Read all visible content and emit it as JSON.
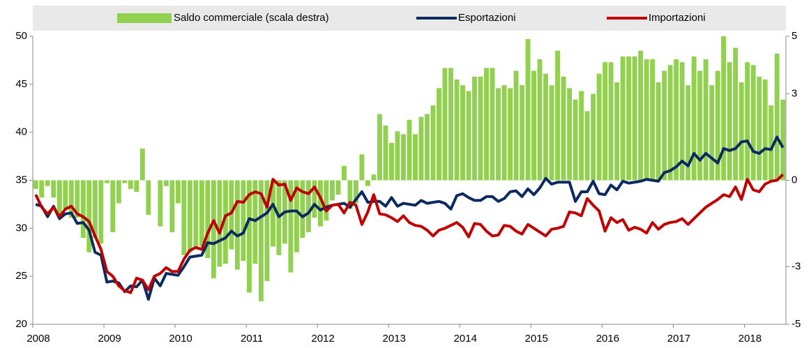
{
  "chart_data": {
    "type": "combo",
    "categories": [
      "2008",
      null,
      null,
      null,
      null,
      null,
      null,
      null,
      null,
      null,
      null,
      null,
      "2009",
      null,
      null,
      null,
      null,
      null,
      null,
      null,
      null,
      null,
      null,
      null,
      "2010",
      null,
      null,
      null,
      null,
      null,
      null,
      null,
      null,
      null,
      null,
      null,
      "2011",
      null,
      null,
      null,
      null,
      null,
      null,
      null,
      null,
      null,
      null,
      null,
      "2012",
      null,
      null,
      null,
      null,
      null,
      null,
      null,
      null,
      null,
      null,
      null,
      "2013",
      null,
      null,
      null,
      null,
      null,
      null,
      null,
      null,
      null,
      null,
      null,
      "2014",
      null,
      null,
      null,
      null,
      null,
      null,
      null,
      null,
      null,
      null,
      null,
      "2015",
      null,
      null,
      null,
      null,
      null,
      null,
      null,
      null,
      null,
      null,
      null,
      "2016",
      null,
      null,
      null,
      null,
      null,
      null,
      null,
      null,
      null,
      null,
      null,
      "2017",
      null,
      null,
      null,
      null,
      null,
      null,
      null,
      null,
      null,
      null,
      null,
      "2018",
      null,
      null,
      null,
      null,
      null,
      null
    ],
    "series": [
      {
        "name": "Saldo commerciale (scala destra)",
        "type": "bar",
        "axis": "y2",
        "color": "#92d050",
        "values": [
          -0.3,
          -0.6,
          -0.2,
          -0.6,
          -1.2,
          -1.0,
          -1.3,
          -1.3,
          -2.0,
          -2.5,
          -2.0,
          -2.2,
          -0.1,
          -1.8,
          -0.8,
          -0.1,
          -0.3,
          -0.4,
          1.1,
          -1.2,
          0.0,
          -1.6,
          -0.2,
          -1.8,
          -0.8,
          -2.6,
          -2.5,
          -2.4,
          -2.3,
          -2.7,
          -3.4,
          -3.0,
          -2.9,
          -2.4,
          -3.1,
          -2.8,
          -3.9,
          -2.9,
          -4.2,
          -3.5,
          -2.3,
          -2.6,
          -2.2,
          -3.2,
          -2.5,
          -2.0,
          -1.8,
          -1.3,
          -1.6,
          -1.4,
          -0.7,
          -0.5,
          0.5,
          -1.0,
          -0.8,
          0.9,
          -0.2,
          0.2,
          2.3,
          1.9,
          1.3,
          1.7,
          1.6,
          2.1,
          1.6,
          2.2,
          2.3,
          2.6,
          3.2,
          3.9,
          3.9,
          3.5,
          3.3,
          3.1,
          3.6,
          3.6,
          3.9,
          3.9,
          3.2,
          3.3,
          3.2,
          3.8,
          3.3,
          4.9,
          3.8,
          4.2,
          3.7,
          3.3,
          4.5,
          3.6,
          3.2,
          2.8,
          3.1,
          2.4,
          3.0,
          3.7,
          4.1,
          4.1,
          3.4,
          4.3,
          4.3,
          4.3,
          4.5,
          4.2,
          4.2,
          3.4,
          3.8,
          4.0,
          4.2,
          4.1,
          3.3,
          4.3,
          3.8,
          4.2,
          3.3,
          3.8,
          5.0,
          4.1,
          4.6,
          3.4,
          4.1,
          4.0,
          3.6,
          3.5,
          2.6,
          4.4,
          2.8
        ]
      },
      {
        "name": "Esportazioni",
        "type": "line",
        "axis": "y",
        "color": "#0b2a60",
        "values": [
          32.5,
          32.3,
          31.2,
          32.3,
          31.0,
          31.5,
          31.6,
          30.5,
          30.6,
          29.8,
          27.5,
          27.2,
          24.4,
          24.5,
          24.3,
          23.4,
          24.0,
          23.9,
          24.6,
          22.6,
          24.8,
          24.0,
          25.3,
          25.2,
          25.1,
          26.0,
          27.0,
          27.1,
          27.2,
          28.5,
          28.4,
          28.7,
          29.0,
          29.7,
          29.2,
          29.5,
          31.0,
          30.8,
          31.2,
          31.6,
          32.5,
          31.2,
          31.7,
          31.8,
          31.8,
          31.2,
          31.6,
          32.5,
          31.9,
          32.2,
          32.4,
          32.5,
          32.6,
          32.2,
          33.0,
          33.8,
          32.7,
          32.8,
          32.8,
          32.3,
          33.2,
          32.3,
          32.6,
          32.5,
          32.4,
          32.9,
          32.6,
          32.7,
          32.8,
          32.6,
          32.0,
          33.4,
          33.6,
          33.2,
          32.9,
          32.9,
          33.3,
          33.3,
          32.8,
          33.1,
          33.8,
          33.9,
          33.3,
          34.1,
          33.5,
          34.2,
          35.2,
          34.6,
          34.8,
          34.8,
          34.8,
          32.8,
          33.8,
          33.8,
          34.9,
          33.6,
          33.5,
          34.5,
          34.0,
          34.9,
          34.7,
          34.8,
          34.9,
          35.1,
          35.0,
          34.9,
          35.8,
          36.0,
          36.4,
          37.0,
          36.5,
          37.8,
          37.1,
          37.8,
          37.3,
          36.8,
          38.3,
          38.1,
          38.3,
          39.0,
          39.1,
          38.0,
          37.8,
          38.3,
          38.2,
          39.5,
          38.4
        ]
      },
      {
        "name": "Importazioni",
        "type": "line",
        "axis": "y",
        "color": "#c00000",
        "values": [
          33.5,
          32.2,
          31.5,
          32.2,
          31.2,
          32.0,
          32.3,
          31.5,
          31.2,
          30.7,
          29.2,
          27.8,
          25.5,
          25.0,
          24.0,
          23.5,
          23.3,
          24.8,
          24.6,
          23.6,
          25.0,
          25.3,
          25.9,
          25.5,
          25.5,
          26.8,
          27.7,
          28.0,
          27.8,
          29.5,
          30.8,
          29.5,
          31.3,
          31.6,
          32.8,
          32.7,
          33.5,
          33.8,
          33.6,
          32.2,
          35.1,
          34.5,
          34.6,
          32.9,
          34.2,
          33.8,
          33.6,
          34.3,
          33.2,
          31.8,
          32.4,
          32.5,
          31.6,
          32.7,
          32.4,
          30.4,
          31.7,
          33.5,
          31.5,
          31.4,
          31.1,
          30.7,
          31.3,
          30.6,
          30.3,
          30.2,
          29.8,
          29.2,
          29.8,
          30.0,
          30.3,
          30.6,
          30.1,
          29.1,
          30.5,
          30.4,
          29.7,
          29.2,
          29.3,
          30.3,
          30.2,
          29.7,
          29.4,
          30.4,
          30.0,
          29.6,
          29.2,
          29.9,
          30.0,
          30.2,
          31.7,
          31.6,
          31.3,
          33.1,
          32.4,
          31.8,
          29.7,
          31.1,
          30.6,
          30.9,
          29.8,
          30.1,
          29.9,
          29.5,
          30.6,
          29.9,
          30.4,
          30.6,
          30.7,
          31.0,
          30.4,
          31.0,
          31.6,
          32.2,
          32.6,
          33.0,
          33.5,
          33.3,
          34.3,
          33.0,
          35.1,
          34.0,
          33.8,
          34.6,
          34.9,
          35.0,
          35.6
        ]
      }
    ],
    "ylim": [
      20,
      50
    ],
    "yticks": [
      20,
      25,
      30,
      35,
      40,
      45,
      50
    ],
    "y2lim": [
      -5,
      5
    ],
    "y2ticks": [
      -5,
      -3,
      0,
      3,
      5
    ],
    "grid": false
  }
}
